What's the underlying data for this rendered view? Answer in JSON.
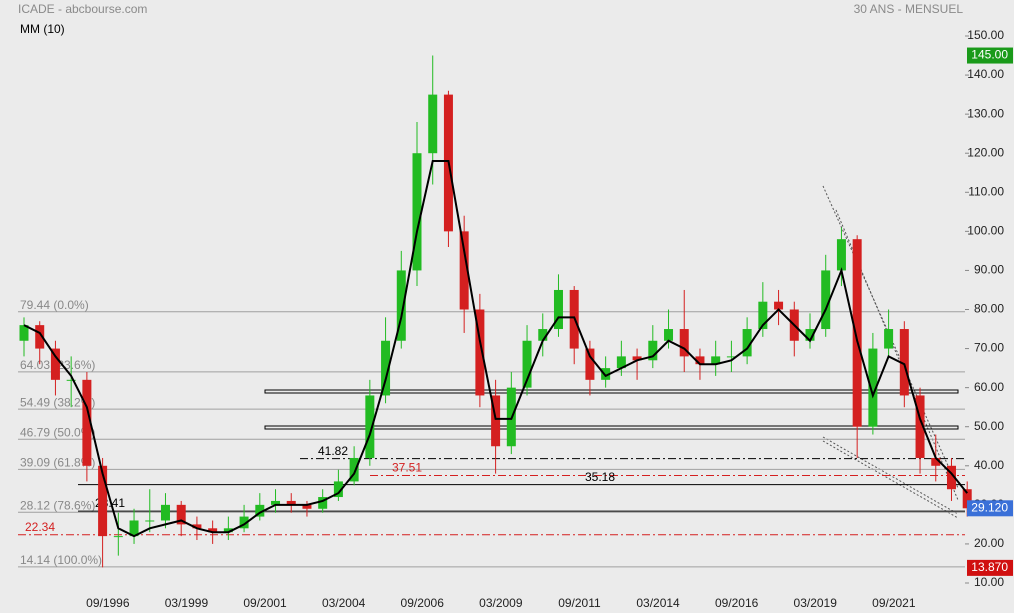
{
  "chart_data": {
    "type": "candlestick",
    "title": "ICADE - abcbourse.com",
    "subtitle": "30 ANS - MENSUEL",
    "indicator_label": "MM (10)",
    "x": [
      "01/1994",
      "07/1994",
      "01/1995",
      "07/1995",
      "01/1996",
      "07/1996",
      "01/1997",
      "07/1997",
      "01/1998",
      "07/1998",
      "01/1999",
      "07/1999",
      "01/2000",
      "07/2000",
      "01/2001",
      "07/2001",
      "01/2002",
      "07/2002",
      "01/2003",
      "07/2003",
      "01/2004",
      "07/2004",
      "01/2005",
      "07/2005",
      "01/2006",
      "07/2006",
      "01/2007",
      "07/2007",
      "01/2008",
      "07/2008",
      "01/2009",
      "07/2009",
      "01/2010",
      "07/2010",
      "01/2011",
      "07/2011",
      "01/2012",
      "07/2012",
      "01/2013",
      "07/2013",
      "01/2014",
      "07/2014",
      "01/2015",
      "07/2015",
      "01/2016",
      "07/2016",
      "01/2017",
      "07/2017",
      "01/2018",
      "07/2018",
      "01/2019",
      "07/2019",
      "01/2020",
      "07/2020",
      "01/2021",
      "07/2021",
      "01/2022",
      "07/2022",
      "01/2023",
      "07/2023",
      "01/2024"
    ],
    "open": [
      72,
      76,
      70,
      62,
      62,
      40,
      22,
      22,
      26,
      26,
      30,
      25,
      24,
      23,
      24,
      27,
      30,
      31,
      30,
      29,
      32,
      36,
      42,
      58,
      72,
      90,
      120,
      135,
      100,
      80,
      58,
      45,
      60,
      72,
      75,
      85,
      70,
      62,
      65,
      68,
      67,
      72,
      75,
      68,
      66,
      68,
      68,
      75,
      82,
      80,
      72,
      75,
      90,
      98,
      50,
      70,
      75,
      58,
      42,
      40,
      34
    ],
    "high": [
      78,
      77,
      72,
      68,
      64,
      42,
      28,
      29,
      34,
      33,
      31,
      27,
      26,
      27,
      30,
      33,
      34,
      33,
      31,
      34,
      39,
      45,
      62,
      78,
      95,
      128,
      145,
      136,
      104,
      84,
      62,
      64,
      76,
      79,
      89,
      86,
      72,
      68,
      72,
      70,
      76,
      80,
      85,
      70,
      72,
      72,
      78,
      87,
      85,
      82,
      79,
      94,
      101,
      99,
      74,
      80,
      77,
      60,
      48,
      42,
      36
    ],
    "low": [
      68,
      66,
      58,
      55,
      36,
      14,
      17,
      20,
      23,
      24,
      22,
      21,
      20,
      21,
      23,
      26,
      28,
      28,
      27,
      28,
      31,
      35,
      40,
      56,
      70,
      86,
      112,
      96,
      74,
      55,
      38,
      43,
      58,
      68,
      73,
      66,
      58,
      60,
      63,
      62,
      65,
      70,
      64,
      62,
      63,
      64,
      66,
      73,
      76,
      68,
      70,
      73,
      86,
      42,
      48,
      68,
      55,
      38,
      36,
      31,
      27
    ],
    "close": [
      76,
      70,
      62,
      62,
      40,
      22,
      22,
      26,
      26,
      30,
      25,
      24,
      23,
      24,
      27,
      30,
      31,
      30,
      29,
      32,
      36,
      42,
      58,
      72,
      90,
      120,
      135,
      100,
      80,
      58,
      45,
      60,
      72,
      75,
      85,
      70,
      62,
      65,
      68,
      67,
      72,
      75,
      68,
      66,
      68,
      68,
      75,
      82,
      80,
      72,
      75,
      90,
      98,
      50,
      70,
      75,
      58,
      42,
      40,
      34,
      29.12
    ],
    "ma": [
      76,
      74,
      68,
      63,
      55,
      38,
      24,
      22,
      24,
      25,
      26,
      24,
      23,
      23,
      25,
      28,
      30,
      30,
      30,
      31,
      33,
      38,
      48,
      62,
      78,
      100,
      118,
      118,
      95,
      72,
      52,
      52,
      62,
      72,
      78,
      78,
      68,
      63,
      65,
      67,
      68,
      72,
      70,
      66,
      66,
      67,
      70,
      76,
      80,
      76,
      72,
      80,
      90,
      72,
      58,
      68,
      66,
      52,
      42,
      38,
      33
    ],
    "up_color": "#22bb22",
    "down_color": "#d42020",
    "ma_color": "#000000",
    "ylim": [
      10,
      150
    ],
    "yticks": [
      {
        "value": 10,
        "label": "10.00"
      },
      {
        "value": 20,
        "label": "20.00"
      },
      {
        "value": 30,
        "label": "30.00"
      },
      {
        "value": 40,
        "label": "40.00"
      },
      {
        "value": 50,
        "label": "50.00"
      },
      {
        "value": 60,
        "label": "60.00"
      },
      {
        "value": 70,
        "label": "70.00"
      },
      {
        "value": 80,
        "label": "80.00"
      },
      {
        "value": 90,
        "label": "90.00"
      },
      {
        "value": 100,
        "label": "100.00"
      },
      {
        "value": 110,
        "label": "110.00"
      },
      {
        "value": 120,
        "label": "120.00"
      },
      {
        "value": 130,
        "label": "130.00"
      },
      {
        "value": 140,
        "label": "140.00"
      },
      {
        "value": 150,
        "label": "150.00"
      }
    ],
    "xticks": [
      "09/1996",
      "03/1999",
      "09/2001",
      "03/2004",
      "09/2006",
      "03/2009",
      "09/2011",
      "03/2014",
      "09/2016",
      "03/2019",
      "09/2021"
    ],
    "fib_levels": [
      {
        "value": 79.44,
        "label": "79.44 (0.0%)"
      },
      {
        "value": 64.03,
        "label": "64.03 (23.6%)"
      },
      {
        "value": 54.49,
        "label": "54.49 (38.2%)"
      },
      {
        "value": 46.79,
        "label": "46.79 (50.0%)"
      },
      {
        "value": 39.09,
        "label": "39.09 (61.8%)"
      },
      {
        "value": 28.12,
        "label": "28.12 (78.6%)"
      },
      {
        "value": 14.14,
        "label": "14.14 (100.0%)"
      }
    ],
    "lines": [
      {
        "value": 41.82,
        "label": "41.82",
        "color": "#000000"
      },
      {
        "value": 37.51,
        "label": "37.51",
        "color": "#d42020"
      },
      {
        "value": 22.34,
        "label": "22.34",
        "color": "#d42020"
      },
      {
        "value": 35.18,
        "label": "35.18",
        "color": "#000000"
      },
      {
        "value": 28.41,
        "label": "28.41",
        "color": "#000000"
      }
    ],
    "price_tags": [
      {
        "value": 145,
        "label": "145.00",
        "color": "#1a9a1a"
      },
      {
        "value": 29.12,
        "label": "29.120",
        "color": "#3a70d8"
      },
      {
        "value": 13.87,
        "label": "13.870",
        "color": "#d01010"
      }
    ]
  }
}
